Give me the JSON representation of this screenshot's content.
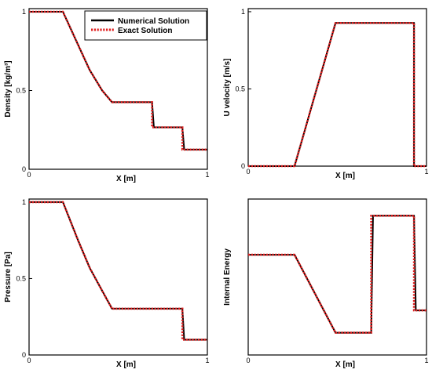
{
  "chart_data": [
    {
      "type": "line",
      "xlabel": "X [m]",
      "ylabel": "Density [kg/m³]",
      "xlim": [
        0,
        1
      ],
      "ylim": [
        0,
        1.02
      ],
      "xticks": [
        "0",
        "1"
      ],
      "yticks": [
        {
          "v": 0,
          "label": "0"
        },
        {
          "v": 0.5,
          "label": "0.5"
        },
        {
          "v": 1,
          "label": "1"
        }
      ],
      "legend": {
        "placement": "top-right",
        "entries": [
          "Numerical Solution",
          "Exact Solution"
        ]
      },
      "series": [
        {
          "name": "Numerical Solution",
          "color": "#000000",
          "style": "solid",
          "x": [
            0,
            0.19,
            0.275,
            0.34,
            0.41,
            0.465,
            0.69,
            0.7,
            0.86,
            0.87,
            1.0
          ],
          "y": [
            1.0,
            1.0,
            0.79,
            0.63,
            0.5,
            0.426,
            0.426,
            0.266,
            0.266,
            0.125,
            0.125
          ]
        },
        {
          "name": "Exact Solution",
          "color": "#e02020",
          "style": "dotted",
          "x": [
            0,
            0.19,
            0.275,
            0.34,
            0.41,
            0.465,
            0.69,
            0.69,
            0.86,
            0.86,
            1.0
          ],
          "y": [
            1.0,
            1.0,
            0.79,
            0.63,
            0.5,
            0.426,
            0.426,
            0.266,
            0.266,
            0.125,
            0.125
          ]
        }
      ]
    },
    {
      "type": "line",
      "xlabel": "X [m]",
      "ylabel": "U velocity [m/s]",
      "xlim": [
        0,
        1
      ],
      "ylim": [
        0,
        1.02
      ],
      "xticks": [
        "0",
        "1"
      ],
      "yticks": [
        {
          "v": 0,
          "label": "0"
        },
        {
          "v": 0.5,
          "label": "0.5"
        },
        {
          "v": 1,
          "label": "1"
        }
      ],
      "series": [
        {
          "name": "Numerical Solution",
          "color": "#000000",
          "style": "solid",
          "x": [
            0,
            0.26,
            0.49,
            0.93,
            0.93,
            1.0
          ],
          "y": [
            0,
            0,
            0.927,
            0.927,
            0,
            0
          ]
        },
        {
          "name": "Exact Solution",
          "color": "#e02020",
          "style": "dotted",
          "x": [
            0,
            0.26,
            0.49,
            0.93,
            0.93,
            1.0
          ],
          "y": [
            0,
            0,
            0.927,
            0.927,
            0,
            0
          ]
        }
      ]
    },
    {
      "type": "line",
      "xlabel": "X [m]",
      "ylabel": "Pressure [Pa]",
      "xlim": [
        0,
        1
      ],
      "ylim": [
        0,
        1.02
      ],
      "xticks": [
        "0",
        "1"
      ],
      "yticks": [
        {
          "v": 0,
          "label": "0"
        },
        {
          "v": 0.5,
          "label": "0.5"
        },
        {
          "v": 1,
          "label": "1"
        }
      ],
      "series": [
        {
          "name": "Numerical Solution",
          "color": "#000000",
          "style": "solid",
          "x": [
            0,
            0.19,
            0.275,
            0.34,
            0.41,
            0.465,
            0.86,
            0.87,
            1.0
          ],
          "y": [
            1.0,
            1.0,
            0.75,
            0.57,
            0.42,
            0.303,
            0.303,
            0.1,
            0.1
          ]
        },
        {
          "name": "Exact Solution",
          "color": "#e02020",
          "style": "dotted",
          "x": [
            0,
            0.19,
            0.275,
            0.34,
            0.41,
            0.465,
            0.86,
            0.86,
            1.0
          ],
          "y": [
            1.0,
            1.0,
            0.75,
            0.57,
            0.42,
            0.303,
            0.303,
            0.1,
            0.1
          ]
        }
      ]
    },
    {
      "type": "line",
      "xlabel": "X [m]",
      "ylabel": "Internal Energy",
      "xlim": [
        0,
        1
      ],
      "ylim": [
        1.6,
        3.0
      ],
      "xticks": [
        "0",
        "1"
      ],
      "yticks": [],
      "series": [
        {
          "name": "Numerical Solution",
          "color": "#000000",
          "style": "solid",
          "x": [
            0,
            0.26,
            0.49,
            0.69,
            0.7,
            0.93,
            0.94,
            1.0
          ],
          "y": [
            2.5,
            2.5,
            1.8,
            1.8,
            2.85,
            2.85,
            2.0,
            2.0
          ]
        },
        {
          "name": "Exact Solution",
          "color": "#e02020",
          "style": "dotted",
          "x": [
            0,
            0.26,
            0.49,
            0.69,
            0.69,
            0.93,
            0.93,
            1.0
          ],
          "y": [
            2.5,
            2.5,
            1.8,
            1.8,
            2.85,
            2.85,
            2.0,
            2.0
          ]
        }
      ]
    }
  ]
}
